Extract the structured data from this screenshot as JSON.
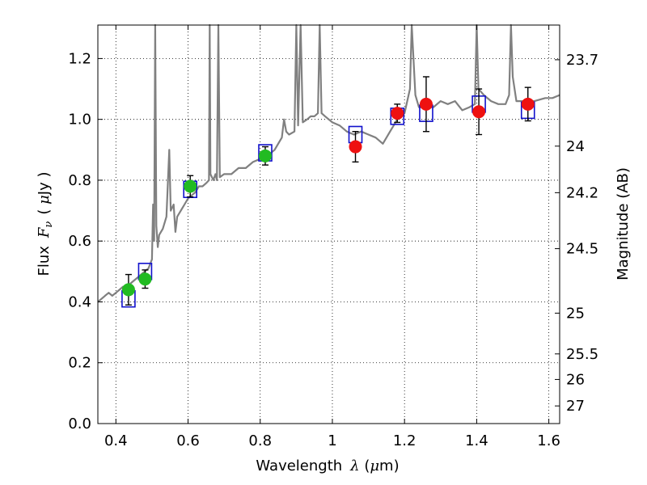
{
  "chart_data": {
    "type": "scatter",
    "xlabel": "Wavelength",
    "xlabel_symbol": "λ",
    "xlabel_unit_open": " (",
    "xlabel_unit_mu": "μ",
    "xlabel_unit_rest": "m)",
    "ylabel": "Flux",
    "ylabel_symbol": "F",
    "ylabel_symbol_sub": "ν",
    "ylabel_unit_open": "( ",
    "ylabel_unit_mu": "μ",
    "ylabel_unit_rest": "Jy )",
    "y2label": "Magnitude (AB)",
    "xlim": [
      0.35,
      1.63
    ],
    "ylim": [
      0.0,
      1.31
    ],
    "grid": true,
    "x_ticks": [
      0.4,
      0.6,
      0.8,
      1.0,
      1.2,
      1.4,
      1.6
    ],
    "x_tick_labels": [
      "0.4",
      "0.6",
      "0.8",
      "1",
      "1.2",
      "1.4",
      "1.6"
    ],
    "y_ticks": [
      0.0,
      0.2,
      0.4,
      0.6,
      0.8,
      1.0,
      1.2
    ],
    "y_tick_labels": [
      "0.0",
      "0.2",
      "0.4",
      "0.6",
      "0.8",
      "1.0",
      "1.2"
    ],
    "magnitude_ticks": [
      {
        "label": "23.7",
        "flux": 1.196
      },
      {
        "label": "24",
        "flux": 0.912
      },
      {
        "label": "24.2",
        "flux": 0.759
      },
      {
        "label": "24.5",
        "flux": 0.575
      },
      {
        "label": "25",
        "flux": 0.363
      },
      {
        "label": "25.5",
        "flux": 0.229
      },
      {
        "label": "26",
        "flux": 0.145
      },
      {
        "label": "27",
        "flux": 0.058
      }
    ],
    "colors": {
      "model": "#808080",
      "optical": "#22bb22",
      "nir": "#ee1111",
      "model_box": "#1111cc",
      "errorbar": "#000000",
      "grid": "#000000"
    },
    "model_spectrum": [
      [
        0.35,
        0.4
      ],
      [
        0.36,
        0.41
      ],
      [
        0.37,
        0.42
      ],
      [
        0.38,
        0.43
      ],
      [
        0.39,
        0.42
      ],
      [
        0.4,
        0.43
      ],
      [
        0.41,
        0.44
      ],
      [
        0.42,
        0.45
      ],
      [
        0.43,
        0.44
      ],
      [
        0.44,
        0.46
      ],
      [
        0.45,
        0.47
      ],
      [
        0.46,
        0.48
      ],
      [
        0.47,
        0.49
      ],
      [
        0.48,
        0.5
      ],
      [
        0.49,
        0.51
      ],
      [
        0.5,
        0.54
      ],
      [
        0.503,
        0.72
      ],
      [
        0.506,
        0.6
      ],
      [
        0.509,
        1.31
      ],
      [
        0.512,
        0.65
      ],
      [
        0.516,
        0.58
      ],
      [
        0.52,
        0.62
      ],
      [
        0.53,
        0.64
      ],
      [
        0.54,
        0.68
      ],
      [
        0.548,
        0.9
      ],
      [
        0.552,
        0.7
      ],
      [
        0.56,
        0.72
      ],
      [
        0.565,
        0.63
      ],
      [
        0.57,
        0.68
      ],
      [
        0.58,
        0.7
      ],
      [
        0.59,
        0.72
      ],
      [
        0.6,
        0.74
      ],
      [
        0.61,
        0.75
      ],
      [
        0.62,
        0.76
      ],
      [
        0.63,
        0.78
      ],
      [
        0.64,
        0.78
      ],
      [
        0.65,
        0.79
      ],
      [
        0.658,
        0.8
      ],
      [
        0.66,
        1.31
      ],
      [
        0.662,
        0.82
      ],
      [
        0.67,
        0.8
      ],
      [
        0.676,
        0.82
      ],
      [
        0.68,
        0.8
      ],
      [
        0.684,
        1.31
      ],
      [
        0.688,
        0.81
      ],
      [
        0.7,
        0.82
      ],
      [
        0.72,
        0.82
      ],
      [
        0.74,
        0.84
      ],
      [
        0.76,
        0.84
      ],
      [
        0.78,
        0.86
      ],
      [
        0.8,
        0.87
      ],
      [
        0.82,
        0.88
      ],
      [
        0.84,
        0.9
      ],
      [
        0.85,
        0.92
      ],
      [
        0.86,
        0.94
      ],
      [
        0.866,
        1.0
      ],
      [
        0.872,
        0.96
      ],
      [
        0.88,
        0.95
      ],
      [
        0.895,
        0.96
      ],
      [
        0.9,
        1.31
      ],
      [
        0.905,
        0.98
      ],
      [
        0.912,
        1.31
      ],
      [
        0.918,
        0.99
      ],
      [
        0.93,
        1.0
      ],
      [
        0.94,
        1.01
      ],
      [
        0.95,
        1.01
      ],
      [
        0.96,
        1.02
      ],
      [
        0.965,
        1.31
      ],
      [
        0.97,
        1.02
      ],
      [
        0.98,
        1.01
      ],
      [
        0.99,
        1.0
      ],
      [
        1.0,
        0.99
      ],
      [
        1.02,
        0.98
      ],
      [
        1.04,
        0.96
      ],
      [
        1.06,
        0.95
      ],
      [
        1.08,
        0.96
      ],
      [
        1.1,
        0.95
      ],
      [
        1.12,
        0.94
      ],
      [
        1.14,
        0.92
      ],
      [
        1.16,
        0.96
      ],
      [
        1.18,
        1.0
      ],
      [
        1.2,
        1.02
      ],
      [
        1.215,
        1.1
      ],
      [
        1.22,
        1.31
      ],
      [
        1.23,
        1.08
      ],
      [
        1.24,
        1.04
      ],
      [
        1.26,
        1.04
      ],
      [
        1.28,
        1.04
      ],
      [
        1.3,
        1.06
      ],
      [
        1.32,
        1.05
      ],
      [
        1.34,
        1.06
      ],
      [
        1.36,
        1.03
      ],
      [
        1.38,
        1.04
      ],
      [
        1.395,
        1.05
      ],
      [
        1.4,
        1.31
      ],
      [
        1.405,
        1.1
      ],
      [
        1.42,
        1.08
      ],
      [
        1.44,
        1.06
      ],
      [
        1.46,
        1.05
      ],
      [
        1.48,
        1.05
      ],
      [
        1.49,
        1.08
      ],
      [
        1.495,
        1.31
      ],
      [
        1.5,
        1.14
      ],
      [
        1.51,
        1.06
      ],
      [
        1.53,
        1.06
      ],
      [
        1.56,
        1.06
      ],
      [
        1.59,
        1.07
      ],
      [
        1.61,
        1.07
      ],
      [
        1.63,
        1.08
      ]
    ],
    "observed_optical": [
      {
        "x": 0.435,
        "y": 0.44,
        "err": 0.05
      },
      {
        "x": 0.481,
        "y": 0.475,
        "err": 0.03
      },
      {
        "x": 0.606,
        "y": 0.78,
        "err": 0.035
      },
      {
        "x": 0.814,
        "y": 0.88,
        "err": 0.03
      }
    ],
    "observed_nir": [
      {
        "x": 1.064,
        "y": 0.91,
        "err": 0.05
      },
      {
        "x": 1.18,
        "y": 1.02,
        "err": 0.03
      },
      {
        "x": 1.26,
        "y": 1.05,
        "err": 0.09
      },
      {
        "x": 1.406,
        "y": 1.025,
        "err": 0.075
      },
      {
        "x": 1.542,
        "y": 1.05,
        "err": 0.055
      }
    ],
    "model_photometry": [
      {
        "x": 0.435,
        "y": 0.41
      },
      {
        "x": 0.481,
        "y": 0.5
      },
      {
        "x": 0.606,
        "y": 0.77
      },
      {
        "x": 0.814,
        "y": 0.89
      },
      {
        "x": 1.064,
        "y": 0.95
      },
      {
        "x": 1.18,
        "y": 1.01
      },
      {
        "x": 1.26,
        "y": 1.02
      },
      {
        "x": 1.406,
        "y": 1.05
      },
      {
        "x": 1.542,
        "y": 1.03
      }
    ]
  }
}
